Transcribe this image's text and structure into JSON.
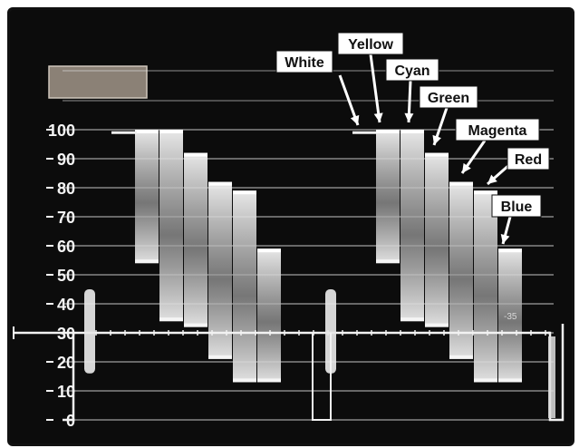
{
  "scope": {
    "scale_labels": [
      "100",
      "90",
      "80",
      "70",
      "60",
      "50",
      "40",
      "30",
      "20",
      "10",
      "0"
    ],
    "scale_values": [
      100,
      90,
      80,
      70,
      60,
      50,
      40,
      30,
      20,
      10,
      0
    ],
    "marker_text": "-35",
    "callouts": [
      {
        "text": "White"
      },
      {
        "text": "Yellow"
      },
      {
        "text": "Cyan"
      },
      {
        "text": "Green"
      },
      {
        "text": "Magenta"
      },
      {
        "text": "Red"
      },
      {
        "text": "Blue"
      }
    ],
    "bars": [
      {
        "top": 100,
        "bottom": 54
      },
      {
        "top": 100,
        "bottom": 34
      },
      {
        "top": 92,
        "bottom": 32
      },
      {
        "top": 82,
        "bottom": 21
      },
      {
        "top": 79,
        "bottom": 13
      },
      {
        "top": 59,
        "bottom": 13
      }
    ],
    "white_level": 99,
    "sync_level": 0,
    "burst": {
      "top": 45,
      "bottom": 16
    },
    "colors": {
      "background": "#0c0c0c",
      "trace": "#f2f2f2",
      "graticule": "#e6e6e6"
    }
  }
}
